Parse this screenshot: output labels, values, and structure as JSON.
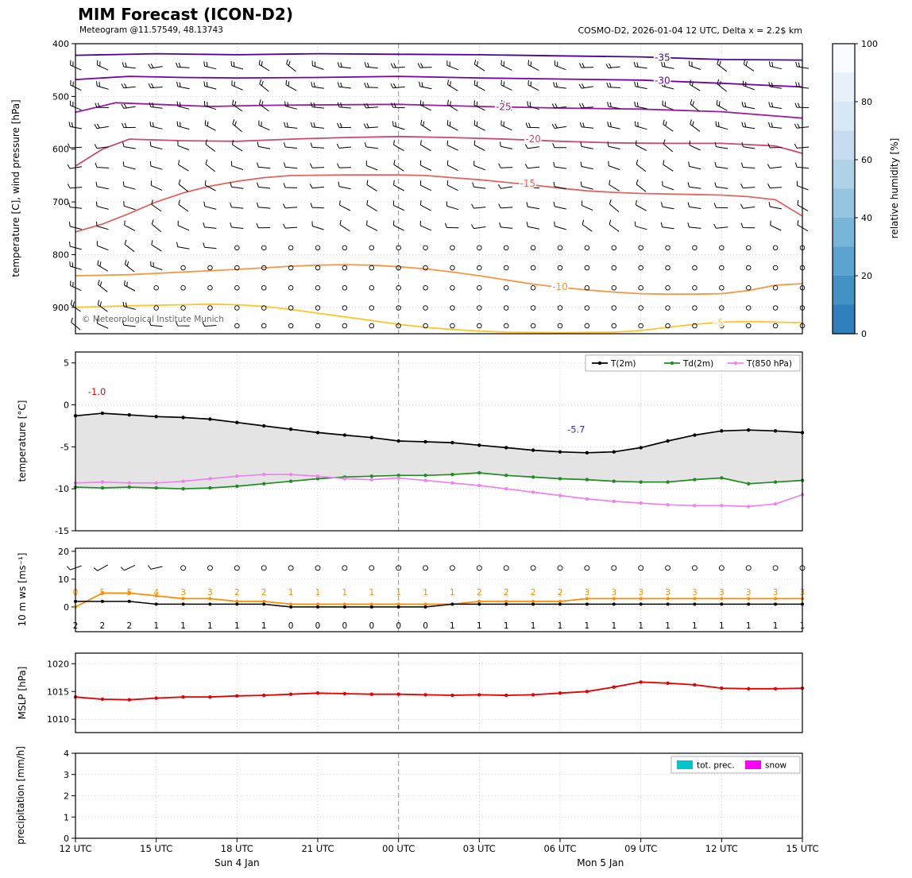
{
  "header": {
    "title": "MIM Forecast (ICON-D2)",
    "subtitle": "Meteogram @11.57549, 48.13743",
    "model_info": "COSMO-D2, 2026-01-04 12 UTC, Delta x = 2.2$ km"
  },
  "copyright": "© Meteorological Institute Munich",
  "time_axis": {
    "hours": 28,
    "tick_every": 3,
    "tick_labels": [
      "12 UTC",
      "15 UTC",
      "18 UTC",
      "21 UTC",
      "00 UTC",
      "03 UTC",
      "06 UTC",
      "09 UTC",
      "12 UTC",
      "15 UTC"
    ],
    "day_labels": [
      {
        "label": "Sun 4 Jan",
        "hour": 6
      },
      {
        "label": "Mon 5 Jan",
        "hour": 19.5
      }
    ],
    "midnight_hour": 12
  },
  "chart_data": [
    {
      "id": "upper_air",
      "type": "contour+barbs",
      "ylabel": "temperature [C], wind pressure [hPa]",
      "ylim": [
        950,
        400
      ],
      "yticks": [
        400,
        500,
        600,
        700,
        800,
        900
      ],
      "grid": true,
      "contours": [
        {
          "label": "-35",
          "color": "#46039f",
          "points": [
            [
              0,
              422
            ],
            [
              3,
              419
            ],
            [
              6,
              421
            ],
            [
              9,
              419
            ],
            [
              12,
              420
            ],
            [
              15,
              421
            ],
            [
              18,
              423
            ],
            [
              21,
              425
            ],
            [
              24,
              430
            ],
            [
              27,
              431
            ]
          ],
          "label_at": [
            21.8,
            426
          ]
        },
        {
          "label": "-30",
          "color": "#7201a8",
          "points": [
            [
              0,
              468
            ],
            [
              2,
              462
            ],
            [
              4,
              464
            ],
            [
              6,
              465
            ],
            [
              9,
              464
            ],
            [
              12,
              462
            ],
            [
              15,
              465
            ],
            [
              18,
              467
            ],
            [
              21,
              469
            ],
            [
              24,
              475
            ],
            [
              27,
              482
            ]
          ],
          "label_at": [
            21.8,
            470
          ]
        },
        {
          "label": "-25",
          "color": "#9c179e",
          "points": [
            [
              0,
              530
            ],
            [
              1.5,
              512
            ],
            [
              3,
              515
            ],
            [
              5,
              519
            ],
            [
              7,
              517
            ],
            [
              9,
              516
            ],
            [
              12,
              515
            ],
            [
              15,
              519
            ],
            [
              18,
              522
            ],
            [
              21,
              524
            ],
            [
              24,
              529
            ],
            [
              27,
              541
            ]
          ],
          "label_at": [
            15.9,
            520
          ]
        },
        {
          "label": "-20",
          "color": "#cc4778",
          "points": [
            [
              0,
              632
            ],
            [
              1,
              600
            ],
            [
              2,
              581
            ],
            [
              4,
              584
            ],
            [
              6,
              585
            ],
            [
              8,
              581
            ],
            [
              10,
              578
            ],
            [
              12,
              576
            ],
            [
              14,
              578
            ],
            [
              16,
              581
            ],
            [
              18,
              585
            ],
            [
              20,
              588
            ],
            [
              22,
              589
            ],
            [
              24,
              589
            ],
            [
              26,
              594
            ],
            [
              27,
              608
            ]
          ],
          "label_at": [
            17,
            581
          ]
        },
        {
          "label": "-15",
          "color": "#e16462",
          "points": [
            [
              0,
              757
            ],
            [
              1,
              742
            ],
            [
              2,
              722
            ],
            [
              3,
              700
            ],
            [
              4,
              683
            ],
            [
              5,
              670
            ],
            [
              6,
              661
            ],
            [
              7,
              654
            ],
            [
              8,
              650
            ],
            [
              10,
              649
            ],
            [
              12,
              649
            ],
            [
              13,
              650
            ],
            [
              14,
              654
            ],
            [
              15,
              658
            ],
            [
              16,
              663
            ],
            [
              17,
              668
            ],
            [
              18,
              674
            ],
            [
              19,
              679
            ],
            [
              20,
              682
            ],
            [
              21,
              684
            ],
            [
              22,
              685
            ],
            [
              23,
              686
            ],
            [
              24,
              687
            ],
            [
              25,
              690
            ],
            [
              26,
              696
            ],
            [
              27,
              727
            ]
          ],
          "label_at": [
            16.8,
            665
          ]
        },
        {
          "label": "-10",
          "color": "#f89540",
          "points": [
            [
              0,
              840
            ],
            [
              2,
              838
            ],
            [
              4,
              833
            ],
            [
              6,
              828
            ],
            [
              8,
              822
            ],
            [
              9,
              820
            ],
            [
              10,
              819
            ],
            [
              11,
              820
            ],
            [
              12,
              823
            ],
            [
              13,
              827
            ],
            [
              14,
              833
            ],
            [
              15,
              840
            ],
            [
              16,
              848
            ],
            [
              17,
              856
            ],
            [
              18,
              862
            ],
            [
              19,
              867
            ],
            [
              20,
              871
            ],
            [
              21,
              874
            ],
            [
              22,
              875
            ],
            [
              23,
              875
            ],
            [
              24,
              874
            ],
            [
              25,
              868
            ],
            [
              26,
              858
            ],
            [
              27,
              855
            ]
          ],
          "label_at": [
            18,
            861
          ]
        },
        {
          "label": "-5",
          "color": "#fdc527",
          "points": [
            [
              0,
              900
            ],
            [
              2,
              897
            ],
            [
              4,
              895
            ],
            [
              5,
              894
            ],
            [
              6,
              895
            ],
            [
              7,
              898
            ],
            [
              8,
              904
            ],
            [
              9,
              911
            ],
            [
              10,
              918
            ],
            [
              11,
              925
            ],
            [
              12,
              932
            ],
            [
              13,
              938
            ],
            [
              14,
              942
            ],
            [
              15,
              945
            ],
            [
              16,
              947
            ],
            [
              18,
              948
            ],
            [
              20,
              947
            ],
            [
              21,
              944
            ],
            [
              22,
              938
            ],
            [
              23,
              932
            ],
            [
              24,
              928
            ],
            [
              25,
              927
            ],
            [
              26,
              928
            ],
            [
              27,
              929
            ]
          ],
          "label_at": [
            23.9,
            930
          ]
        }
      ],
      "barb_rows": [
        {
          "pressure": 445,
          "calm_from_hour": -1,
          "ticks": 2
        },
        {
          "pressure": 483,
          "calm_from_hour": -1,
          "ticks": 2
        },
        {
          "pressure": 521,
          "calm_from_hour": -1,
          "ticks": 2
        },
        {
          "pressure": 559,
          "calm_from_hour": -1,
          "ticks": 2
        },
        {
          "pressure": 597,
          "calm_from_hour": -1,
          "ticks": 1
        },
        {
          "pressure": 635,
          "calm_from_hour": -1,
          "ticks": 1
        },
        {
          "pressure": 673,
          "calm_from_hour": -1,
          "ticks": 1
        },
        {
          "pressure": 711,
          "calm_from_hour": -1,
          "ticks": 1
        },
        {
          "pressure": 749,
          "calm_from_hour": -1,
          "ticks": 1
        },
        {
          "pressure": 787,
          "calm_from_hour": 6,
          "ticks": 1
        },
        {
          "pressure": 825,
          "calm_from_hour": 4,
          "ticks": 2
        },
        {
          "pressure": 863,
          "calm_from_hour": 3,
          "ticks": 2
        },
        {
          "pressure": 901,
          "calm_from_hour": 3,
          "ticks": 2
        },
        {
          "pressure": 935,
          "calm_from_hour": 6,
          "ticks": 1
        }
      ],
      "colorbar": {
        "label": "relative humidity [%]",
        "ticks": [
          0,
          20,
          40,
          60,
          80,
          100
        ],
        "colors": [
          "#f7fbff",
          "#e7f1fa",
          "#d8e7f5",
          "#c6dbef",
          "#b0d2e7",
          "#94c4df",
          "#77b5d9",
          "#5ba3d0",
          "#4292c6",
          "#2f7fbc"
        ]
      }
    },
    {
      "id": "temperature",
      "type": "line",
      "ylabel": "temperature [°C]",
      "ylim": [
        -15,
        6.3
      ],
      "yticks": [
        5,
        0,
        -5,
        -10,
        -15
      ],
      "grid": true,
      "legend_position": "upper right",
      "fill_between": [
        "T(2m)",
        "Td(2m)"
      ],
      "fill_color": "#e4e4e4",
      "series": [
        {
          "name": "T(2m)",
          "color": "#000000",
          "values": [
            -1.3,
            -1.0,
            -1.2,
            -1.4,
            -1.5,
            -1.7,
            -2.1,
            -2.5,
            -2.9,
            -3.3,
            -3.6,
            -3.9,
            -4.3,
            -4.4,
            -4.5,
            -4.8,
            -5.1,
            -5.4,
            -5.6,
            -5.7,
            -5.6,
            -5.1,
            -4.3,
            -3.6,
            -3.1,
            -3.0,
            -3.1,
            -3.3
          ]
        },
        {
          "name": "Td(2m)",
          "color": "#1f8c1f",
          "values": [
            -9.8,
            -9.9,
            -9.8,
            -9.9,
            -10.0,
            -9.9,
            -9.7,
            -9.4,
            -9.1,
            -8.8,
            -8.6,
            -8.5,
            -8.4,
            -8.4,
            -8.3,
            -8.1,
            -8.4,
            -8.6,
            -8.8,
            -8.9,
            -9.1,
            -9.2,
            -9.2,
            -8.9,
            -8.7,
            -9.4,
            -9.2,
            -9.0
          ]
        },
        {
          "name": "T(850 hPa)",
          "color": "#ee82ee",
          "values": [
            -9.3,
            -9.2,
            -9.3,
            -9.3,
            -9.1,
            -8.8,
            -8.5,
            -8.3,
            -8.3,
            -8.5,
            -8.8,
            -8.9,
            -8.7,
            -9.0,
            -9.3,
            -9.6,
            -10.0,
            -10.4,
            -10.8,
            -11.2,
            -11.5,
            -11.7,
            -11.9,
            -12.0,
            -12.0,
            -12.1,
            -11.8,
            -10.7
          ]
        }
      ],
      "annotations": [
        {
          "text": "-1.0",
          "color": "#dd0000",
          "hour": 0.8,
          "value": 1.2
        },
        {
          "text": "-5.7",
          "color": "#3333cc",
          "hour": 18.6,
          "value": -3.3
        }
      ]
    },
    {
      "id": "wind",
      "type": "line",
      "ylabel": "10 m ws [ms⁻¹]",
      "ylim": [
        -8.9,
        21.1
      ],
      "yticks": [
        0,
        10,
        20
      ],
      "grid": true,
      "barb_row_value": 14,
      "barb_hours": [
        0,
        1,
        2,
        3
      ],
      "series": [
        {
          "name": "wind-gust",
          "color": "#ff8c00",
          "values": [
            0,
            5,
            5,
            4,
            3,
            3,
            2,
            2,
            1,
            1,
            1,
            1,
            1,
            1,
            1,
            2,
            2,
            2,
            2,
            3,
            3,
            3,
            3,
            3,
            3,
            3,
            3,
            3
          ]
        },
        {
          "name": "wind-speed",
          "color": "#000000",
          "values": [
            2,
            2,
            2,
            1,
            1,
            1,
            1,
            1,
            0,
            0,
            0,
            0,
            0,
            0,
            1,
            1,
            1,
            1,
            1,
            1,
            1,
            1,
            1,
            1,
            1,
            1,
            1,
            1
          ]
        }
      ]
    },
    {
      "id": "mslp",
      "type": "line",
      "ylabel": "MSLP [hPa]",
      "ylim": [
        1007.6,
        1021.9
      ],
      "yticks": [
        1010,
        1015,
        1020
      ],
      "grid": true,
      "series": [
        {
          "name": "MSLP",
          "color": "#e50000",
          "values": [
            1014.0,
            1013.6,
            1013.5,
            1013.8,
            1014.0,
            1014.0,
            1014.2,
            1014.3,
            1014.5,
            1014.7,
            1014.6,
            1014.5,
            1014.5,
            1014.4,
            1014.3,
            1014.4,
            1014.3,
            1014.4,
            1014.7,
            1015.0,
            1015.8,
            1016.7,
            1016.5,
            1016.2,
            1015.6,
            1015.5,
            1015.5,
            1015.6
          ]
        }
      ]
    },
    {
      "id": "precipitation",
      "type": "bar",
      "ylabel": "precipitation [mm/h]",
      "ylim": [
        0,
        4
      ],
      "yticks": [
        0,
        1,
        2,
        3,
        4
      ],
      "grid": true,
      "legend_position": "upper right",
      "series": [
        {
          "name": "tot. prec.",
          "color": "#00c5cd",
          "values": [
            0,
            0,
            0,
            0,
            0,
            0,
            0,
            0,
            0,
            0,
            0,
            0,
            0,
            0,
            0,
            0,
            0,
            0,
            0,
            0,
            0,
            0,
            0,
            0,
            0,
            0,
            0,
            0
          ]
        },
        {
          "name": "snow",
          "color": "#ff00ff",
          "values": [
            0,
            0,
            0,
            0,
            0,
            0,
            0,
            0,
            0,
            0,
            0,
            0,
            0,
            0,
            0,
            0,
            0,
            0,
            0,
            0,
            0,
            0,
            0,
            0,
            0,
            0,
            0,
            0
          ]
        }
      ]
    }
  ]
}
